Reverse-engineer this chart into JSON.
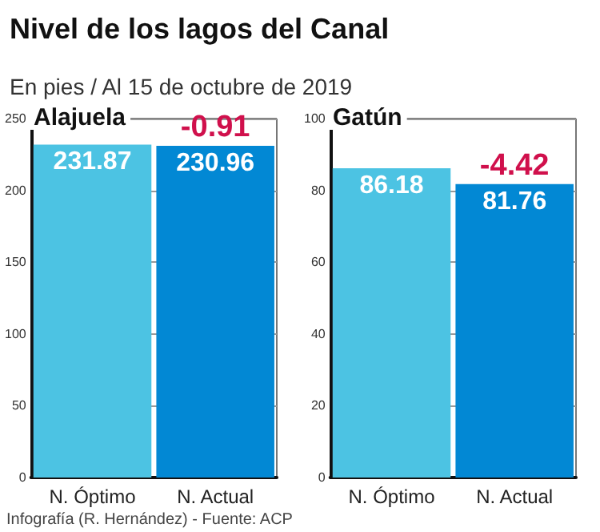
{
  "chart_data": [
    {
      "type": "bar",
      "title": "Alajuela",
      "categories": [
        "N. Óptimo",
        "N. Actual"
      ],
      "values": [
        231.87,
        230.96
      ],
      "colors": [
        "#4cc3e3",
        "#0288d4"
      ],
      "ylim": [
        0,
        250
      ],
      "yticks": [
        0,
        50,
        100,
        150,
        200,
        250
      ],
      "grid": "y",
      "data_labels": true,
      "annotations": [
        "Nivel de los lagos del Canal",
        "En pies / Al 15 de octubre de 2019",
        {
          "text": "-0.91",
          "x": "N. Actual",
          "y": 230.96
        },
        "Infografía (R. Hernández) - Fuente: ACP"
      ]
    },
    {
      "type": "bar",
      "title": "Gatún",
      "categories": [
        "N. Óptimo",
        "N. Actual"
      ],
      "values": [
        86.18,
        81.76
      ],
      "colors": [
        "#4cc3e3",
        "#0288d4"
      ],
      "ylim": [
        0,
        100
      ],
      "yticks": [
        0,
        20,
        40,
        60,
        80,
        100
      ],
      "grid": "y",
      "data_labels": true,
      "annotations": [
        {
          "text": "-4.42",
          "x": "N. Actual",
          "y": 81.76
        }
      ]
    }
  ]
}
